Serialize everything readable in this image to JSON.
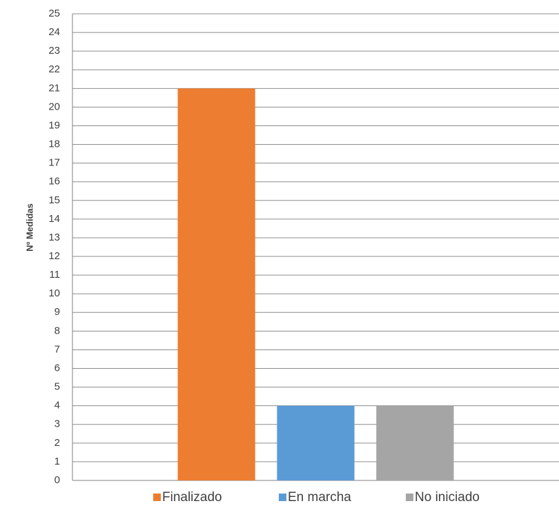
{
  "chart_data": {
    "type": "bar",
    "categories": [
      "Finalizado",
      "En marcha",
      "No iniciado"
    ],
    "values": [
      21,
      4,
      4
    ],
    "ylabel": "Nº Medidas",
    "ylim": [
      0,
      25
    ],
    "yticks": [
      0,
      1,
      2,
      3,
      4,
      5,
      6,
      7,
      8,
      9,
      10,
      11,
      12,
      13,
      14,
      15,
      16,
      17,
      18,
      19,
      20,
      21,
      22,
      23,
      24,
      25
    ],
    "grid": true,
    "legend_position": "bottom",
    "colors": [
      "#ED7D31",
      "#5B9BD5",
      "#A5A5A5"
    ]
  }
}
